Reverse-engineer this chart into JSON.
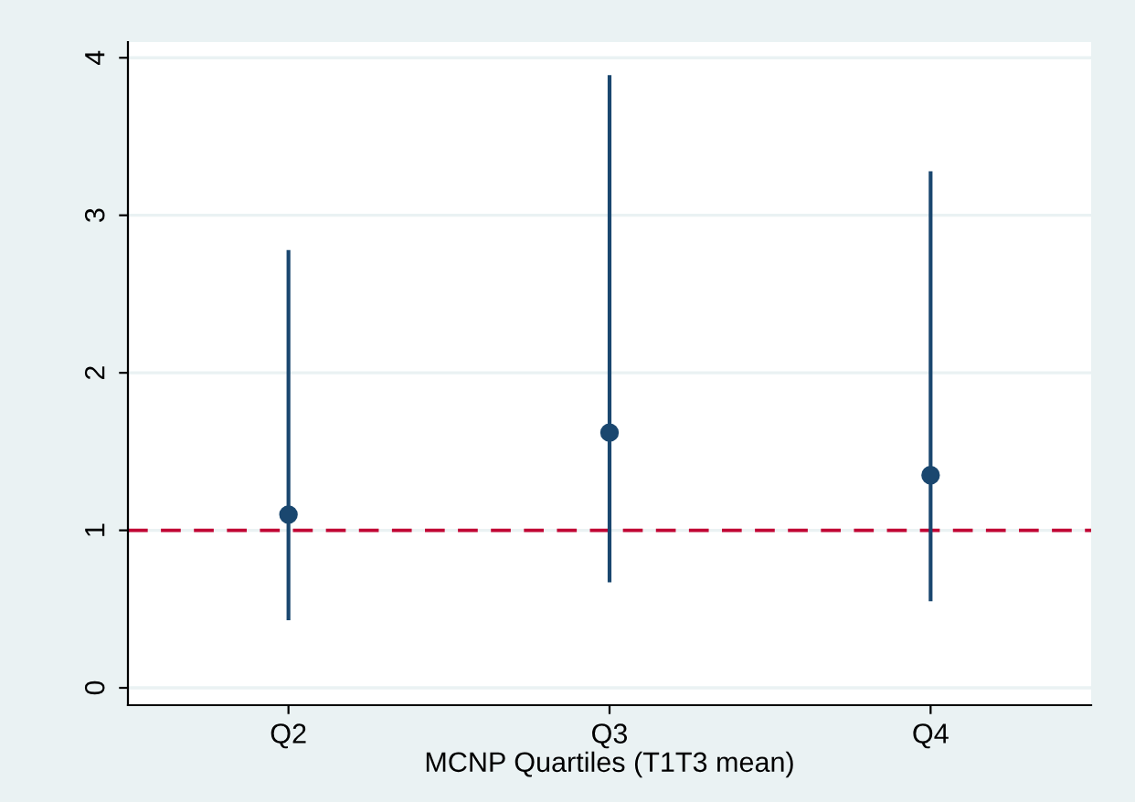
{
  "chart_data": {
    "type": "scatter",
    "xlabel": "MCNP Quartiles (T1T3 mean)",
    "categories": [
      "Q2",
      "Q3",
      "Q4"
    ],
    "series": [
      {
        "color": "#1a476f",
        "values": [
          1.1,
          1.62,
          1.35
        ],
        "errors": [
          [
            0.43,
            2.78
          ],
          [
            0.67,
            3.89
          ],
          [
            0.55,
            3.28
          ]
        ]
      }
    ],
    "marker": "circle",
    "ylim": [
      -0.11,
      4.1
    ],
    "yticks": [
      0,
      1,
      2,
      3,
      4
    ],
    "grid": "y",
    "ref_lines": [
      {
        "axis": "y",
        "value": 1,
        "color": "#c10534",
        "line_style": "dashed"
      }
    ]
  }
}
